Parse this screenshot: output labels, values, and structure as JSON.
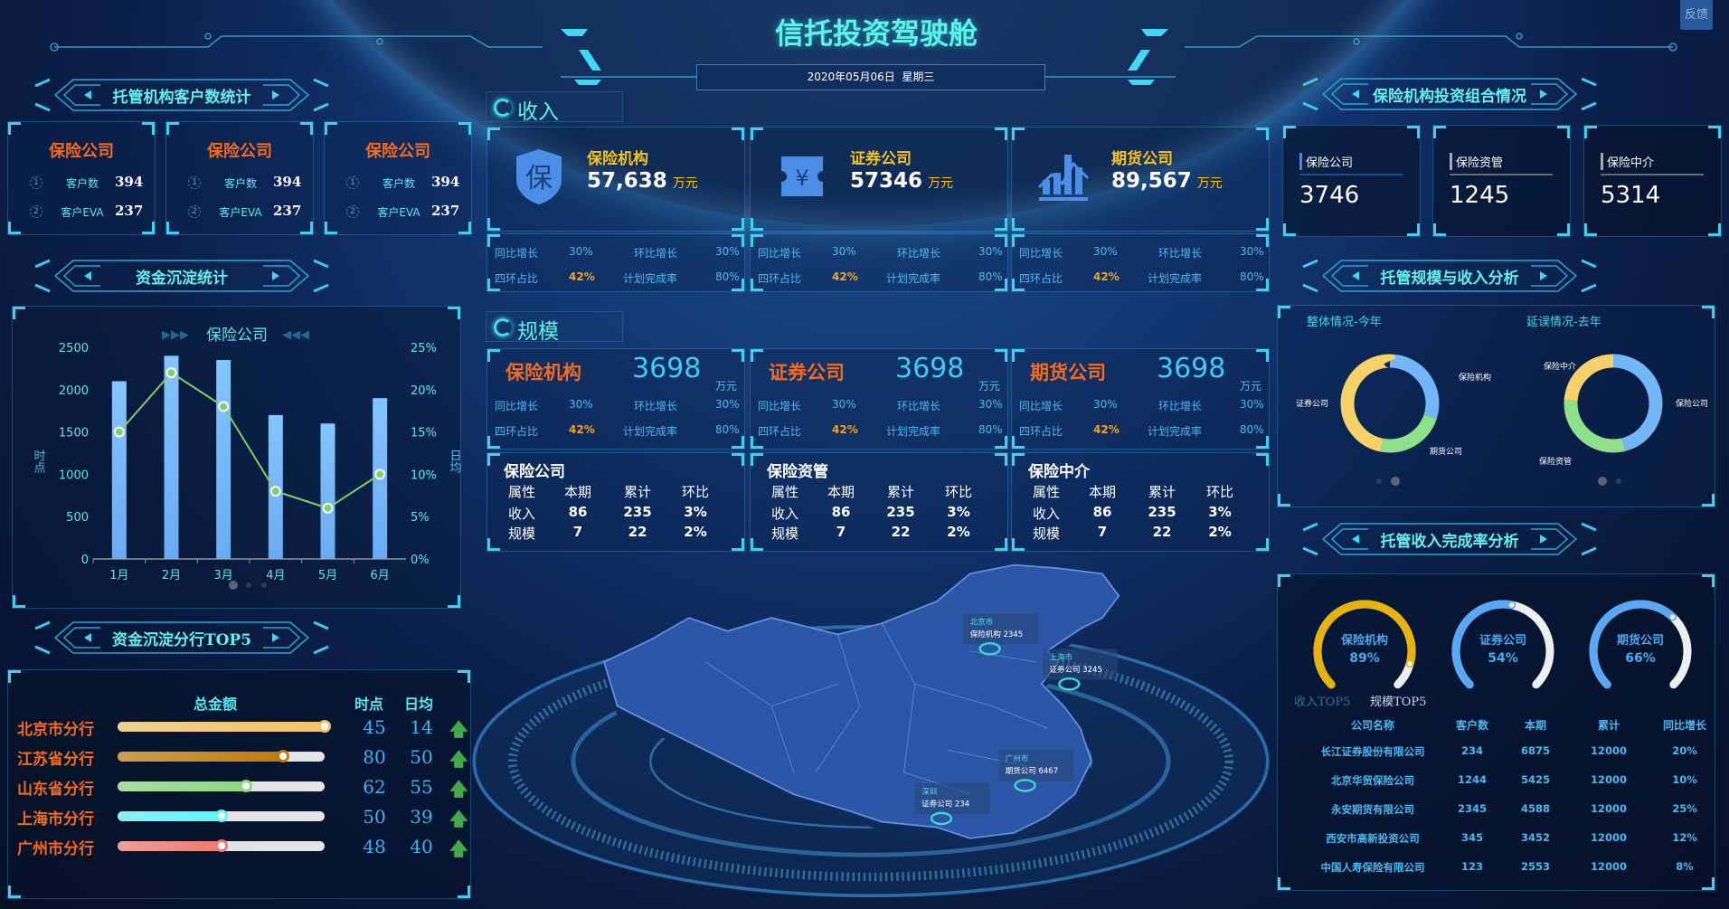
{
  "header": {
    "title": "信托投资驾驶舱",
    "date": "2020年05月06日  星期三",
    "feedback": "反馈"
  },
  "left": {
    "client_stats": {
      "title": "托管机构客户数统计",
      "cards": [
        {
          "name": "保险公司",
          "rows": [
            {
              "index": "1",
              "label": "客户数",
              "value": "394"
            },
            {
              "index": "2",
              "label": "客户EVA",
              "value": "237"
            }
          ]
        },
        {
          "name": "保险公司",
          "rows": [
            {
              "index": "1",
              "label": "客户数",
              "value": "394"
            },
            {
              "index": "2",
              "label": "客户EVA",
              "value": "237"
            }
          ]
        },
        {
          "name": "保险公司",
          "rows": [
            {
              "index": "1",
              "label": "客户数",
              "value": "394"
            },
            {
              "index": "2",
              "label": "客户EVA",
              "value": "237"
            }
          ]
        }
      ]
    },
    "deposit": {
      "title": "资金沉淀统计",
      "pager": {
        "pages": 3,
        "active": 0
      }
    },
    "top5": {
      "title": "资金沉淀分行TOP5",
      "headers": {
        "total": "总金额",
        "point": "时点",
        "daily": "日均"
      },
      "rows": [
        {
          "name": "北京市分行",
          "fill": 1.0,
          "color": "#f2c466",
          "point": "45",
          "daily": "14",
          "trend": "up-arrow-icon"
        },
        {
          "name": "江苏省分行",
          "fill": 0.8,
          "color": "#c27a06",
          "point": "80",
          "daily": "50",
          "trend": "up-arrow-icon"
        },
        {
          "name": "山东省分行",
          "fill": 0.62,
          "color": "#8bd882",
          "point": "62",
          "daily": "55",
          "trend": "up-arrow-icon"
        },
        {
          "name": "上海市分行",
          "fill": 0.5,
          "color": "#5ef6f8",
          "point": "50",
          "daily": "39",
          "trend": "up-arrow-icon"
        },
        {
          "name": "广州市分行",
          "fill": 0.5,
          "color": "#ee7b72",
          "point": "48",
          "daily": "40",
          "trend": "up-arrow-icon"
        }
      ]
    }
  },
  "center": {
    "income": {
      "title": "收入",
      "cards": [
        {
          "name": "保险机构",
          "value": "57,638",
          "unit": "万元",
          "icon": "shield-bao-icon",
          "icon_char": "保"
        },
        {
          "name": "证券公司",
          "value": "57346",
          "unit": "万元",
          "icon": "yuan-ticket-icon",
          "icon_char": "¥"
        },
        {
          "name": "期货公司",
          "value": "89,567",
          "unit": "万元",
          "icon": "bar-trend-chart-icon",
          "icon_char": ""
        }
      ],
      "stats": [
        [
          {
            "label": "同比增长",
            "value": "30%"
          },
          {
            "label": "环比增长",
            "value": "30%"
          },
          {
            "label": "四环占比",
            "value": "42%"
          },
          {
            "label": "计划完成率",
            "value": "80%"
          }
        ],
        [
          {
            "label": "同比增长",
            "value": "30%"
          },
          {
            "label": "环比增长",
            "value": "30%"
          },
          {
            "label": "四环占比",
            "value": "42%"
          },
          {
            "label": "计划完成率",
            "value": "80%"
          }
        ],
        [
          {
            "label": "同比增长",
            "value": "30%"
          },
          {
            "label": "环比增长",
            "value": "30%"
          },
          {
            "label": "四环占比",
            "value": "42%"
          },
          {
            "label": "计划完成率",
            "value": "80%"
          }
        ]
      ]
    },
    "scale": {
      "title": "规模",
      "cards": [
        {
          "name": "保险机构",
          "value": "3698",
          "unit": "万元",
          "stats": [
            {
              "label": "同比增长",
              "value": "30%"
            },
            {
              "label": "环比增长",
              "value": "30%"
            },
            {
              "label": "四环占比",
              "value": "42%"
            },
            {
              "label": "计划完成率",
              "value": "80%"
            }
          ]
        },
        {
          "name": "证券公司",
          "value": "3698",
          "unit": "万元",
          "stats": [
            {
              "label": "同比增长",
              "value": "30%"
            },
            {
              "label": "环比增长",
              "value": "30%"
            },
            {
              "label": "四环占比",
              "value": "42%"
            },
            {
              "label": "计划完成率",
              "value": "80%"
            }
          ]
        },
        {
          "name": "期货公司",
          "value": "3698",
          "unit": "万元",
          "stats": [
            {
              "label": "同比增长",
              "value": "30%"
            },
            {
              "label": "环比增长",
              "value": "30%"
            },
            {
              "label": "四环占比",
              "value": "42%"
            },
            {
              "label": "计划完成率",
              "value": "80%"
            }
          ]
        }
      ],
      "tables": [
        {
          "title": "保险公司",
          "headers": [
            "属性",
            "本期",
            "累计",
            "环比"
          ],
          "rows": [
            [
              "收入",
              "86",
              "235",
              "3%"
            ],
            [
              "规模",
              "7",
              "22",
              "2%"
            ]
          ]
        },
        {
          "title": "保险资管",
          "headers": [
            "属性",
            "本期",
            "累计",
            "环比"
          ],
          "rows": [
            [
              "收入",
              "86",
              "235",
              "3%"
            ],
            [
              "规模",
              "7",
              "22",
              "2%"
            ]
          ]
        },
        {
          "title": "保险中介",
          "headers": [
            "属性",
            "本期",
            "累计",
            "环比"
          ],
          "rows": [
            [
              "收入",
              "86",
              "235",
              "3%"
            ],
            [
              "规模",
              "7",
              "22",
              "2%"
            ]
          ]
        }
      ]
    },
    "map": {
      "markers": [
        {
          "city": "北京市",
          "label": "保险机构 2345"
        },
        {
          "city": "上海市",
          "label": "证券公司 3245"
        },
        {
          "city": "广州市",
          "label": "期货公司 6467"
        },
        {
          "city": "深圳",
          "label": "证券公司 234"
        }
      ]
    }
  },
  "right": {
    "portfolio": {
      "title": "保险机构投资组合情况",
      "cards": [
        {
          "label": "保险公司",
          "value": "3746"
        },
        {
          "label": "保险资管",
          "value": "1245"
        },
        {
          "label": "保险中介",
          "value": "5314"
        }
      ]
    },
    "analysis": {
      "title": "托管规模与收入分析"
    },
    "completion": {
      "title": "托管收入完成率分析",
      "gauges": [
        {
          "name": "保险机构",
          "value": 89,
          "label": "89%",
          "color": "#e8b20c"
        },
        {
          "name": "证券公司",
          "value": 54,
          "label": "54%",
          "color": "#5aa8f5"
        },
        {
          "name": "期货公司",
          "value": 66,
          "label": "66%",
          "color": "#5aa8f5"
        }
      ],
      "tabs": [
        {
          "label": "收入TOP5",
          "active": false
        },
        {
          "label": "规模TOP5",
          "active": true
        }
      ],
      "table": {
        "headers": [
          "公司名称",
          "客户数",
          "本期",
          "累计",
          "同比增长"
        ],
        "rows": [
          [
            "长江证券股份有限公司",
            "234",
            "6875",
            "12000",
            "20%"
          ],
          [
            "北京华贸保险公司",
            "1244",
            "5425",
            "12000",
            "10%"
          ],
          [
            "永安期货有限公司",
            "2345",
            "4588",
            "12000",
            "25%"
          ],
          [
            "西安市高新投资公司",
            "345",
            "3452",
            "12000",
            "12%"
          ],
          [
            "中国人寿保险有限公司",
            "123",
            "2553",
            "12000",
            "8%"
          ]
        ]
      }
    }
  },
  "chart_data": [
    {
      "type": "bar+line",
      "title": "保险公司",
      "categories": [
        "1月",
        "2月",
        "3月",
        "4月",
        "5月",
        "6月"
      ],
      "series": [
        {
          "type": "bar",
          "axis": "left",
          "values": [
            2100,
            2400,
            2350,
            1700,
            1600,
            1900
          ],
          "color": "#74b6fa"
        },
        {
          "type": "line",
          "axis": "right",
          "values": [
            15,
            22,
            18,
            8,
            6,
            10
          ],
          "color": "#7ed06a"
        }
      ],
      "ylabel_left": "时点",
      "ylabel_right": "日均",
      "ylim_left": [
        0,
        2500
      ],
      "ylim_right": [
        0,
        25
      ],
      "yticks_left": [
        "0",
        "500",
        "1000",
        "1500",
        "2000",
        "2500"
      ],
      "yticks_right": [
        "0%",
        "5%",
        "10%",
        "15%",
        "20%",
        "25%"
      ],
      "grid": false
    },
    {
      "type": "pie",
      "donut": true,
      "title": "整体情况-今年",
      "slices": [
        {
          "name": "保险机构",
          "value": 30,
          "color": "#72b6f8"
        },
        {
          "name": "证券公司",
          "value": 23,
          "color": "#8fe08a"
        },
        {
          "name": "期货公司",
          "value": 47,
          "color": "#f6d068"
        }
      ],
      "pager": {
        "pages": 2,
        "active": 1
      }
    },
    {
      "type": "pie",
      "donut": true,
      "title": "延误情况-去年",
      "slices": [
        {
          "name": "保险公司",
          "value": 46,
          "color": "#72b6f8"
        },
        {
          "name": "保险资管",
          "value": 30,
          "color": "#8fe08a"
        },
        {
          "name": "保险中介",
          "value": 24,
          "color": "#f6d068"
        }
      ],
      "pager": {
        "pages": 2,
        "active": 0
      }
    }
  ]
}
